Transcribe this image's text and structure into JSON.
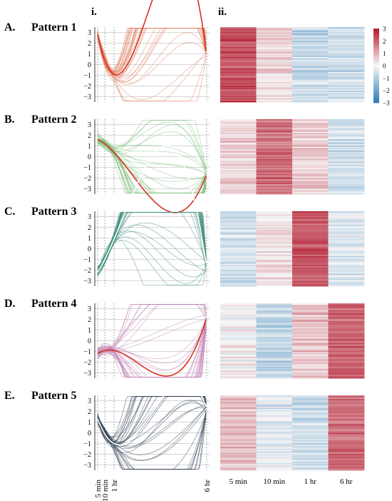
{
  "columns": {
    "left": "i.",
    "right": "ii."
  },
  "time_labels": [
    "5 min",
    "10 min",
    "1 hr",
    "6 hr"
  ],
  "heatmap_time_labels": [
    "5 min",
    "10 min",
    "1 hr",
    "6 hr"
  ],
  "colorbar": {
    "ticks": [
      3,
      2,
      1,
      0,
      -1,
      -2,
      -3
    ],
    "tick_labels": [
      "3",
      "2",
      "1",
      "0",
      "−1",
      "−2",
      "−3"
    ],
    "low_color": "#2c7bb6",
    "mid_color": "#f7f7f7",
    "high_color": "#b2182b"
  },
  "panels": [
    {
      "letter": "A.",
      "title": "Pattern 1",
      "mean": [
        2.8,
        0.4,
        -0.9,
        0.8
      ],
      "accent": "#d7301f",
      "line_color": "#e08060",
      "heat_means": [
        2.2,
        0.4,
        -0.7,
        -0.6
      ]
    },
    {
      "letter": "B.",
      "title": "Pattern 2",
      "mean": [
        1.6,
        1.2,
        0.4,
        -1.6
      ],
      "accent": "#d7301f",
      "line_color": "#7fbf7b",
      "heat_means": [
        0.5,
        1.8,
        0.6,
        -0.6
      ]
    },
    {
      "letter": "C.",
      "title": "Pattern 3",
      "mean": [
        -2.2,
        -1.0,
        0.9,
        -1.8
      ],
      "accent": "#ffffff",
      "line_color": "#3a8a7a",
      "heat_means": [
        -0.6,
        0.3,
        2.2,
        -0.4
      ]
    },
    {
      "letter": "D.",
      "title": "Pattern 4",
      "mean": [
        -1.2,
        -0.9,
        -0.9,
        2.2
      ],
      "accent": "#d7301f",
      "line_color": "#c080b0",
      "heat_means": [
        0.1,
        -0.8,
        0.7,
        2.0
      ]
    },
    {
      "letter": "E.",
      "title": "Pattern 5",
      "mean": [
        1.3,
        -0.1,
        -1.0,
        2.3
      ],
      "accent": "#ffffff",
      "line_color": "#2c3e50",
      "heat_means": [
        0.8,
        -0.3,
        -0.6,
        1.9
      ]
    }
  ],
  "chart_data": [
    {
      "type": "line",
      "title": "Pattern 1",
      "x": [
        "5 min",
        "10 min",
        "1 hr",
        "6 hr"
      ],
      "ylim": [
        -3.5,
        3.5
      ],
      "series": [
        {
          "values": [
            2.8,
            0.4,
            -0.9,
            0.8
          ]
        }
      ]
    },
    {
      "type": "line",
      "title": "Pattern 2",
      "x": [
        "5 min",
        "10 min",
        "1 hr",
        "6 hr"
      ],
      "ylim": [
        -3.5,
        3.5
      ],
      "series": [
        {
          "values": [
            1.6,
            1.2,
            0.4,
            -1.6
          ]
        }
      ]
    },
    {
      "type": "line",
      "title": "Pattern 3",
      "x": [
        "5 min",
        "10 min",
        "1 hr",
        "6 hr"
      ],
      "ylim": [
        -3.5,
        3.5
      ],
      "series": [
        {
          "values": [
            -2.2,
            -1.0,
            0.9,
            -1.8
          ]
        }
      ]
    },
    {
      "type": "line",
      "title": "Pattern 4",
      "x": [
        "5 min",
        "10 min",
        "1 hr",
        "6 hr"
      ],
      "ylim": [
        -3.5,
        3.5
      ],
      "series": [
        {
          "values": [
            -1.2,
            -0.9,
            -0.9,
            2.2
          ]
        }
      ]
    },
    {
      "type": "line",
      "title": "Pattern 5",
      "x": [
        "5 min",
        "10 min",
        "1 hr",
        "6 hr"
      ],
      "ylim": [
        -3.5,
        3.5
      ],
      "series": [
        {
          "values": [
            1.3,
            -0.1,
            -1.0,
            2.3
          ]
        }
      ]
    },
    {
      "type": "heatmap",
      "title": "Pattern 1",
      "x": [
        "5 min",
        "10 min",
        "1 hr",
        "6 hr"
      ],
      "zlim": [
        -3,
        3
      ],
      "values": [
        2.2,
        0.4,
        -0.7,
        -0.6
      ]
    },
    {
      "type": "heatmap",
      "title": "Pattern 2",
      "x": [
        "5 min",
        "10 min",
        "1 hr",
        "6 hr"
      ],
      "zlim": [
        -3,
        3
      ],
      "values": [
        0.5,
        1.8,
        0.6,
        -0.6
      ]
    },
    {
      "type": "heatmap",
      "title": "Pattern 3",
      "x": [
        "5 min",
        "10 min",
        "1 hr",
        "6 hr"
      ],
      "zlim": [
        -3,
        3
      ],
      "values": [
        -0.6,
        0.3,
        2.2,
        -0.4
      ]
    },
    {
      "type": "heatmap",
      "title": "Pattern 4",
      "x": [
        "5 min",
        "10 min",
        "1 hr",
        "6 hr"
      ],
      "zlim": [
        -3,
        3
      ],
      "values": [
        0.1,
        -0.8,
        0.7,
        2.0
      ]
    },
    {
      "type": "heatmap",
      "title": "Pattern 5",
      "x": [
        "5 min",
        "10 min",
        "1 hr",
        "6 hr"
      ],
      "zlim": [
        -3,
        3
      ],
      "values": [
        0.8,
        -0.3,
        -0.6,
        1.9
      ]
    }
  ]
}
